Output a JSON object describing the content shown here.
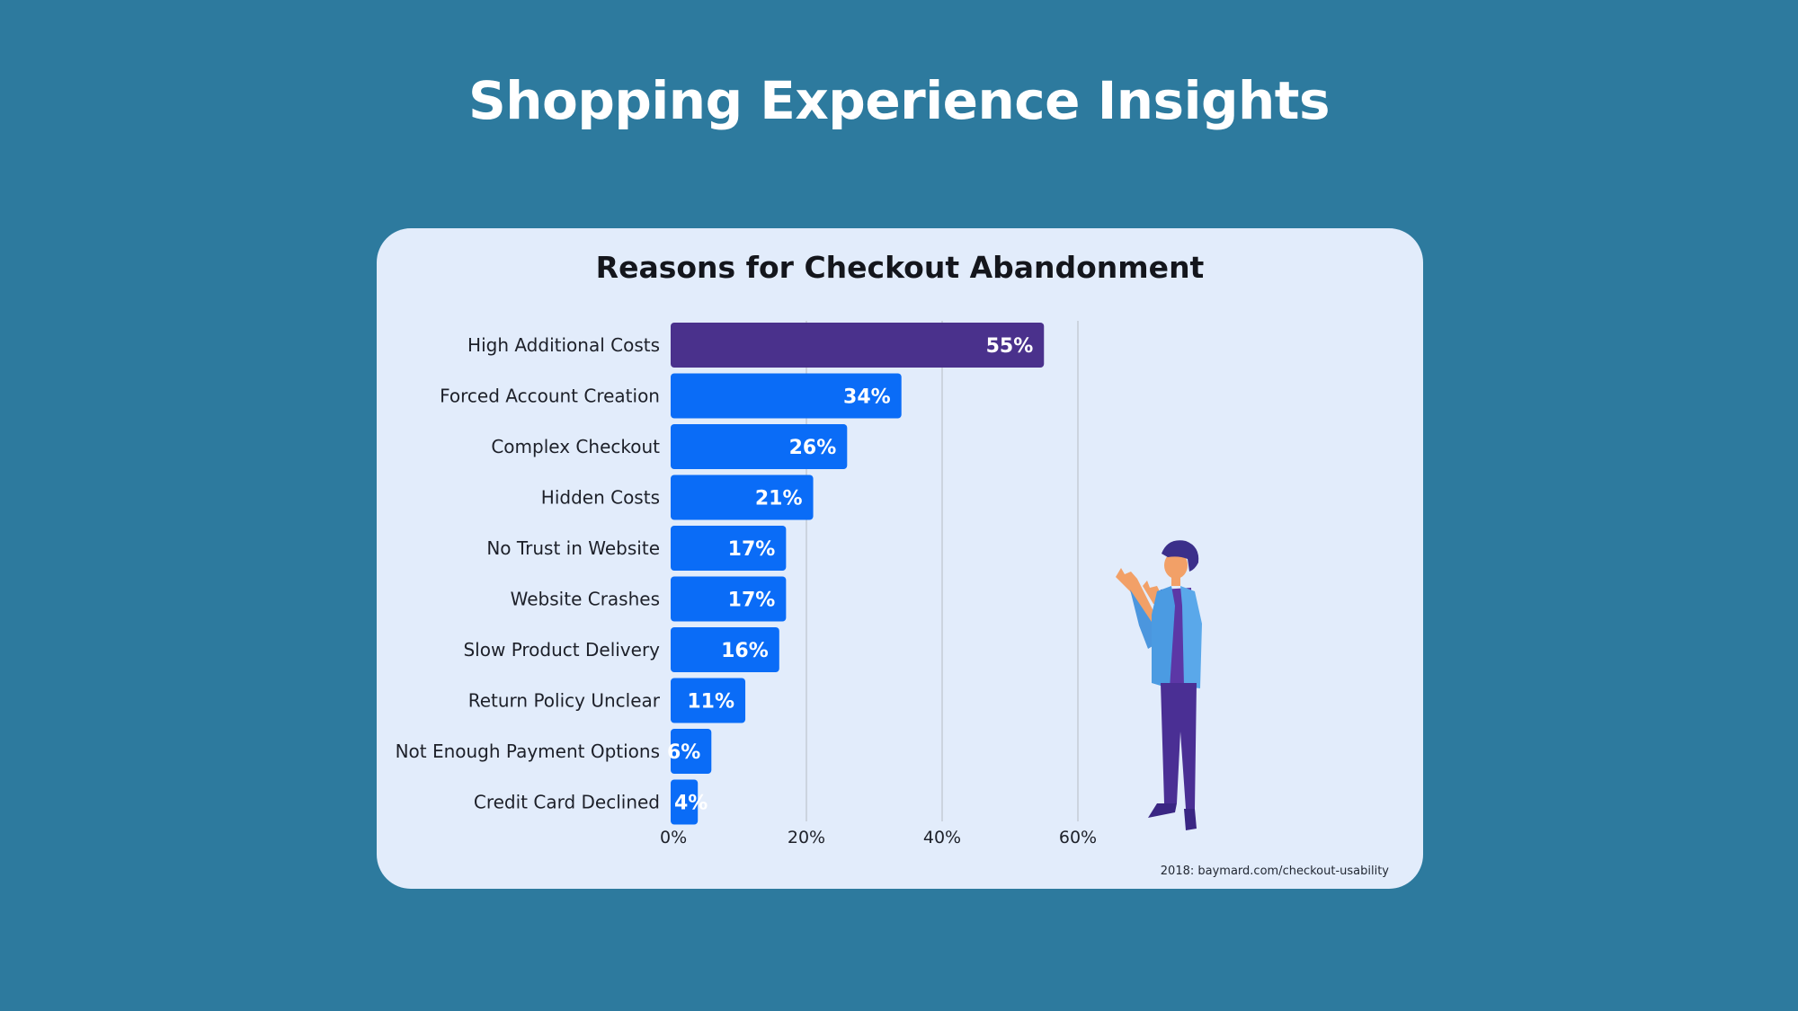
{
  "header": {
    "title": "Shopping Experience Insights"
  },
  "source": "2018: baymard.com/checkout-usability",
  "colors": {
    "background": "#2d7a9e",
    "card": "#e2ecfb",
    "highlight_bar": "#4a318c",
    "bar": "#0a6cf7",
    "grid": "#c4cbd6"
  },
  "illustration": {
    "icon": "presenting-person-icon"
  },
  "chart_data": {
    "type": "bar",
    "orientation": "horizontal",
    "title": "Reasons for Checkout Abandonment",
    "categories": [
      "High Additional Costs",
      "Forced Account Creation",
      "Complex Checkout",
      "Hidden Costs",
      "No Trust in Website",
      "Website Crashes",
      "Slow Product Delivery",
      "Return Policy Unclear",
      "Not Enough Payment Options",
      "Credit Card Declined"
    ],
    "values": [
      55,
      34,
      26,
      21,
      17,
      17,
      16,
      11,
      6,
      4
    ],
    "value_labels": [
      "55%",
      "34%",
      "26%",
      "21%",
      "17%",
      "17%",
      "16%",
      "11%",
      "6%",
      "4%"
    ],
    "highlight_index": 0,
    "xlim": [
      0,
      60
    ],
    "xticks": [
      0,
      20,
      40,
      60
    ],
    "xtick_labels": [
      "0%",
      "20%",
      "40%",
      "60%"
    ],
    "grid": true,
    "xlabel": "",
    "ylabel": ""
  }
}
